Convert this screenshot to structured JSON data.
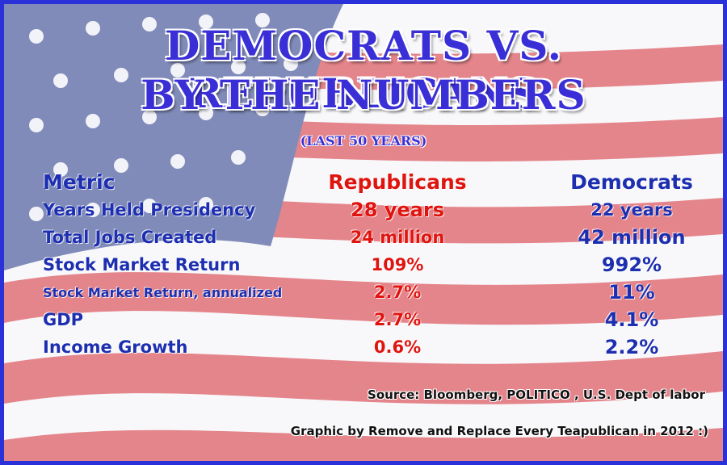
{
  "title_line1": "DEMOCRATS VS. REPUBLICANS",
  "title_line2": "BY THE NUMBERS",
  "subtitle": "(LAST 50 YEARS)",
  "headers": {
    "metric": "Metric",
    "republicans": "Republicans",
    "democrats": "Democrats"
  },
  "rows": [
    {
      "metric": "Years Held Presidency",
      "republicans": "28 years",
      "democrats": "22 years"
    },
    {
      "metric": "Total Jobs Created",
      "republicans": "24 million",
      "democrats": "42 million"
    },
    {
      "metric": "Stock Market Return",
      "republicans": "109%",
      "democrats": "992%"
    },
    {
      "metric": "Stock Market Return, annualized",
      "republicans": "2.7%",
      "democrats": "11%"
    },
    {
      "metric": "GDP",
      "republicans": "2.7%",
      "democrats": "4.1%"
    },
    {
      "metric": "Income Growth",
      "republicans": "0.6%",
      "democrats": "2.2%"
    }
  ],
  "source": "Source: Bloomberg, POLITICO , U.S. Dept of labor",
  "credit": "Graphic by Remove and Replace Every Teapublican in 2012 :)",
  "colors": {
    "border": "#2a31d8",
    "title": "#3a2fd6",
    "blue_text": "#1d2fb0",
    "red_text": "#e0140f",
    "flag_red": "#c8303a",
    "flag_blue": "#2b3a8f"
  }
}
